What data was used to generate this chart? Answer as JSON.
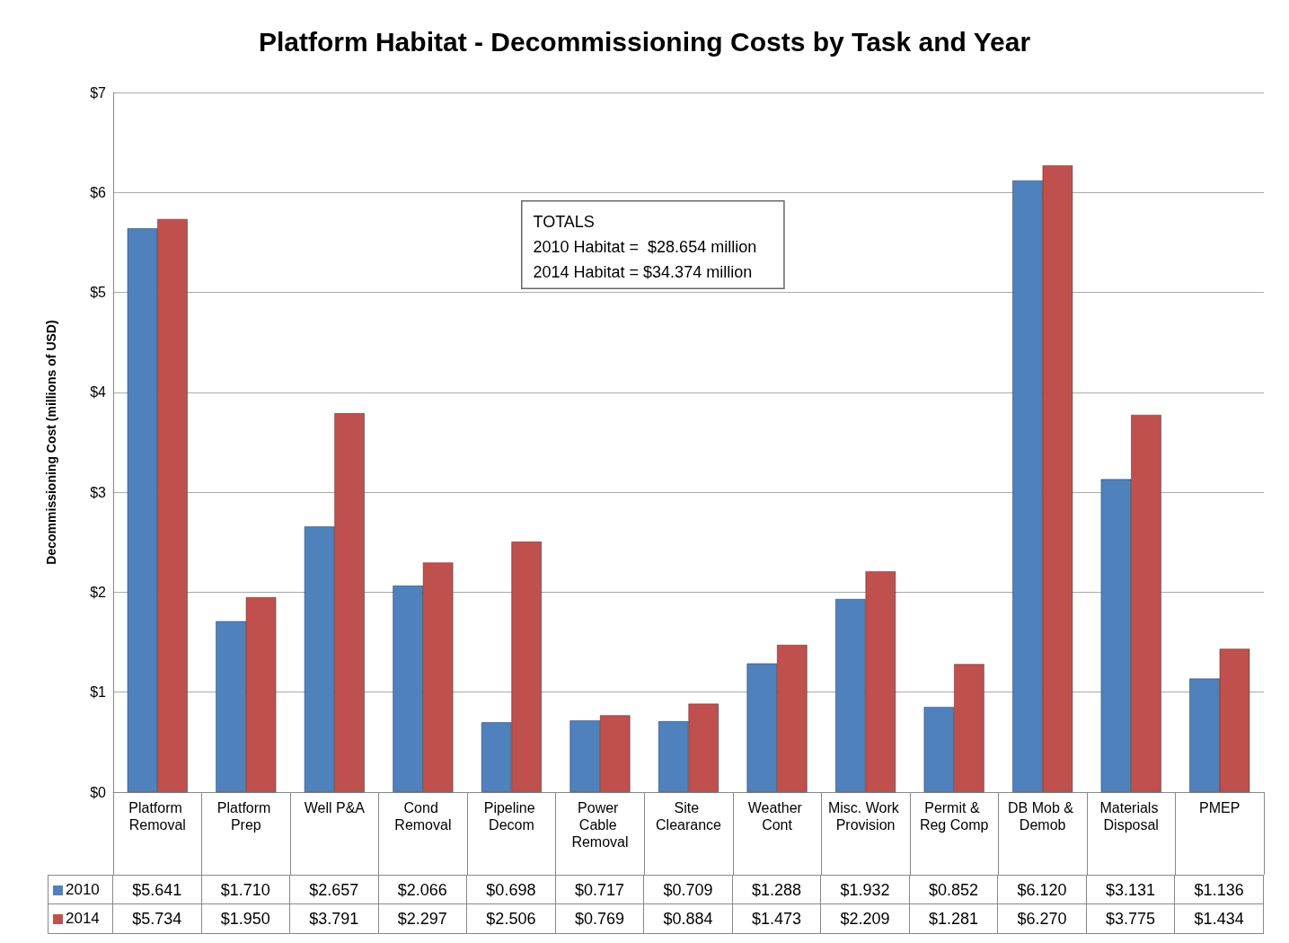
{
  "chart_data": {
    "type": "bar",
    "title": "Platform Habitat - Decommissioning Costs by Task and Year",
    "ylabel": "Decommissioning Cost (millions of USD)",
    "categories": [
      "Platform Removal",
      "Platform Prep",
      "Well P&A",
      "Cond Removal",
      "Pipeline Decom",
      "Power Cable Removal",
      "Site Clearance",
      "Weather Cont",
      "Misc. Work Provision",
      "Permit & Reg Comp",
      "DB Mob & Demob",
      "Materials Disposal",
      "PMEP"
    ],
    "series": [
      {
        "name": "2010",
        "color": "#4f81bd",
        "values": [
          5.641,
          1.71,
          2.657,
          2.066,
          0.698,
          0.717,
          0.709,
          1.288,
          1.932,
          0.852,
          6.12,
          3.131,
          1.136
        ],
        "value_labels": [
          "$5.641",
          "$1.710",
          "$2.657",
          "$2.066",
          "$0.698",
          "$0.717",
          "$0.709",
          "$1.288",
          "$1.932",
          "$0.852",
          "$6.120",
          "$3.131",
          "$1.136"
        ]
      },
      {
        "name": "2014",
        "color": "#c0504d",
        "values": [
          5.734,
          1.95,
          3.791,
          2.297,
          2.506,
          0.769,
          0.884,
          1.473,
          2.209,
          1.281,
          6.27,
          3.775,
          1.434
        ],
        "value_labels": [
          "$5.734",
          "$1.950",
          "$3.791",
          "$2.297",
          "$2.506",
          "$0.769",
          "$0.884",
          "$1.473",
          "$2.209",
          "$1.281",
          "$6.270",
          "$3.775",
          "$1.434"
        ]
      }
    ],
    "ylim": [
      0,
      7
    ],
    "yticks": [
      {
        "value": 0,
        "label": "$0"
      },
      {
        "value": 1,
        "label": "$1"
      },
      {
        "value": 2,
        "label": "$2"
      },
      {
        "value": 3,
        "label": "$3"
      },
      {
        "value": 4,
        "label": "$4"
      },
      {
        "value": 5,
        "label": "$5"
      },
      {
        "value": 6,
        "label": "$6"
      },
      {
        "value": 7,
        "label": "$7"
      }
    ],
    "grid": "y",
    "legend": "bottom",
    "annotations": [
      "TOTALS\n2010 Habitat =  $28.654 million\n2014 Habitat = $34.374 million"
    ]
  }
}
